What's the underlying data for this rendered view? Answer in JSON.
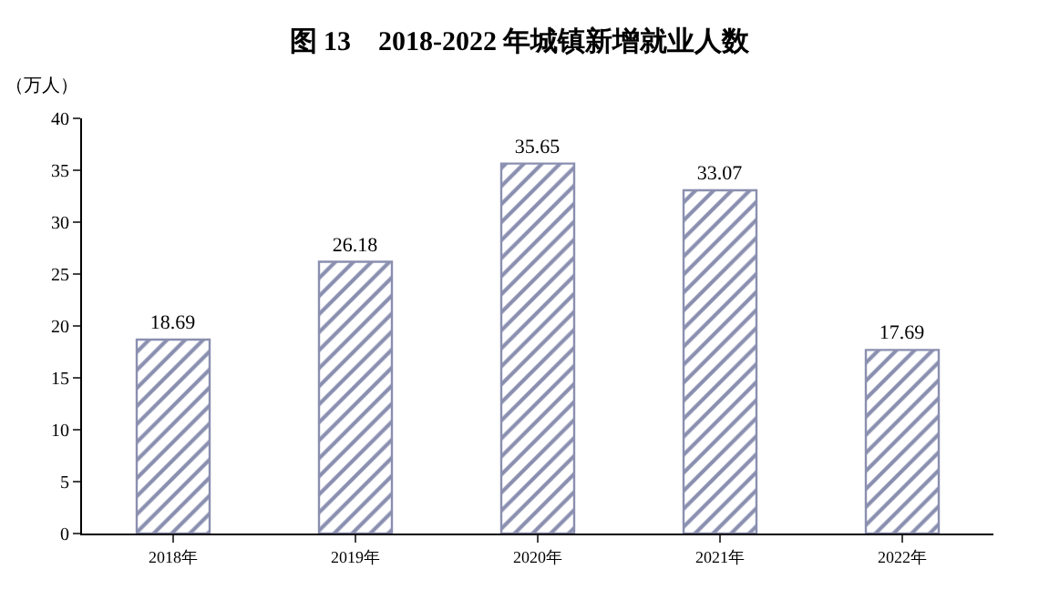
{
  "chart_data": {
    "type": "bar",
    "title": "图 13　2018-2022 年城镇新增就业人数",
    "ylabel": "（万人）",
    "categories": [
      "2018年",
      "2019年",
      "2020年",
      "2021年",
      "2022年"
    ],
    "values": [
      18.69,
      26.18,
      35.65,
      33.07,
      17.69
    ],
    "color": "#8a8fb0",
    "ylim": [
      0,
      40
    ],
    "yticks": [
      0,
      5,
      10,
      15,
      20,
      25,
      30,
      35,
      40
    ],
    "data_labels": true,
    "grid": false
  }
}
